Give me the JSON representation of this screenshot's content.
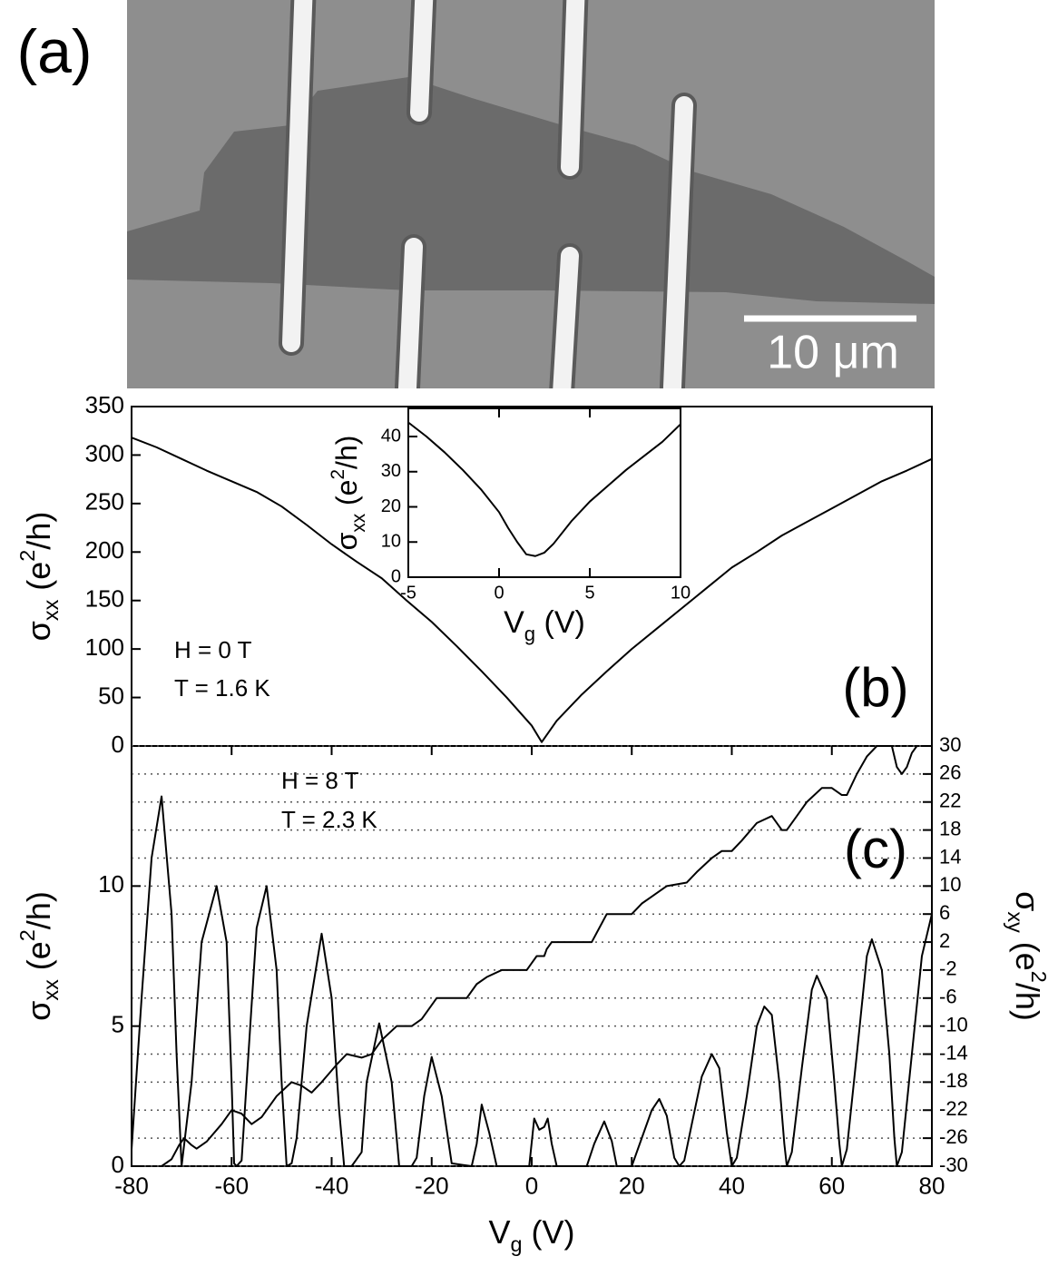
{
  "micrograph": {
    "label": "(a)",
    "scale_bar": "10 μm"
  },
  "chart_data": [
    {
      "type": "line",
      "panel": "(b)",
      "color": "#000000",
      "xlim": [
        -80,
        80
      ],
      "ylim": [
        0,
        350
      ],
      "yticks": [
        0,
        50,
        100,
        150,
        200,
        250,
        300,
        350
      ],
      "ylabel": [
        "σ",
        "xx",
        " (e",
        "2",
        "/h)"
      ],
      "annotations": [
        "H = 0 T",
        "T = 1.6 K"
      ],
      "x": [
        -80,
        -75,
        -70,
        -65,
        -60,
        -55,
        -50,
        -45,
        -40,
        -35,
        -30,
        -25,
        -20,
        -15,
        -10,
        -5,
        0,
        2,
        5,
        10,
        15,
        20,
        25,
        30,
        35,
        40,
        45,
        50,
        55,
        60,
        65,
        70,
        75,
        80
      ],
      "values": [
        318,
        308,
        296,
        284,
        273,
        262,
        247,
        228,
        208,
        190,
        173,
        150,
        128,
        103,
        77,
        50,
        21,
        4,
        26,
        53,
        77,
        100,
        121,
        142,
        163,
        184,
        200,
        217,
        231,
        245,
        259,
        273,
        284,
        296
      ]
    },
    {
      "type": "line",
      "color": "#000000",
      "xlim": [
        -5,
        10
      ],
      "xticks": [
        -5,
        0,
        5,
        10
      ],
      "ylim": [
        0,
        48
      ],
      "yticks": [
        0,
        10,
        20,
        30,
        40
      ],
      "xlabel": [
        "V",
        "g",
        " (V)"
      ],
      "ylabel": [
        "σ",
        "xx",
        " (e",
        "2",
        "/h)"
      ],
      "x": [
        -5,
        -4,
        -3,
        -2,
        -1,
        0,
        0.5,
        1,
        1.5,
        2,
        2.5,
        3,
        4,
        5,
        6,
        7,
        8,
        9,
        10
      ],
      "values": [
        44,
        40,
        35.5,
        30.5,
        25,
        18.5,
        14,
        10,
        6.5,
        6,
        7,
        9.5,
        16,
        21.5,
        26,
        30.5,
        34.5,
        38.5,
        43.5
      ]
    },
    {
      "type": "line",
      "panel": "(c)",
      "xlim": [
        -80,
        80
      ],
      "xticks": [
        -80,
        -60,
        -40,
        -20,
        0,
        20,
        40,
        60,
        80
      ],
      "ylim": [
        0,
        15
      ],
      "yticks": [
        0,
        5,
        10
      ],
      "y2lim": [
        -30,
        30
      ],
      "y2ticks": [
        30,
        26,
        22,
        18,
        14,
        10,
        6,
        2,
        -2,
        -6,
        -10,
        -14,
        -18,
        -22,
        -26,
        -30
      ],
      "grid": "y2",
      "xlabel": [
        "V",
        "g",
        " (V)"
      ],
      "ylabel": [
        "σ",
        "xx",
        " (e",
        "2",
        "/h)"
      ],
      "y2label": [
        "σ",
        "xy",
        " (e",
        "2",
        "/h)"
      ],
      "annotations": [
        "H = 8 T",
        "T = 2.3 K"
      ],
      "series": [
        {
          "color": "#000000",
          "x": [
            -80,
            -78,
            -76,
            -74,
            -72,
            -71,
            -70,
            -68,
            -66,
            -63,
            -61,
            -60,
            -59.5,
            -59,
            -58,
            -57,
            -55,
            -53,
            -51,
            -50,
            -49,
            -48,
            -47,
            -45,
            -42,
            -40,
            -38.5,
            -37.5,
            -36,
            -34,
            -33,
            -30.5,
            -28,
            -26.5,
            -24,
            -23,
            -21.5,
            -20,
            -18,
            -16,
            -12,
            -11,
            -10,
            -8.5,
            -7,
            -0.5,
            0.5,
            1.5,
            2.5,
            3.2,
            4,
            5,
            11,
            12.5,
            14.5,
            16,
            17,
            20,
            22,
            24,
            25.5,
            27,
            28.5,
            29.5,
            30.5,
            32,
            34,
            36,
            37.5,
            39,
            40,
            41,
            43,
            45,
            46.5,
            48,
            49.5,
            50.5,
            51,
            52,
            54,
            56,
            57,
            59,
            60.5,
            61.5,
            62,
            63,
            65,
            67,
            68,
            70,
            71.5,
            72.5,
            73,
            74,
            76,
            78,
            80
          ],
          "values": [
            0.6,
            6,
            11,
            13.2,
            9,
            4,
            0,
            3,
            8,
            10,
            8,
            3,
            0.1,
            0,
            0.2,
            3,
            8.5,
            10,
            7,
            3,
            0,
            0.1,
            1,
            5,
            8.3,
            6,
            2,
            0,
            0,
            0.5,
            3,
            5.1,
            3,
            0,
            0,
            0.3,
            2.5,
            3.9,
            2.5,
            0.1,
            0,
            0.8,
            2.2,
            1.2,
            0,
            0,
            1.7,
            1.3,
            1.4,
            1.7,
            0.8,
            0,
            0,
            0.8,
            1.6,
            0.9,
            0,
            0,
            1,
            2,
            2.4,
            1.8,
            0.3,
            0,
            0.2,
            1.5,
            3.2,
            4,
            3.5,
            1.2,
            0,
            0.3,
            2.5,
            5,
            5.7,
            5.4,
            3,
            0.8,
            0,
            0.5,
            3.5,
            6.3,
            6.8,
            6,
            3,
            0.8,
            0,
            0.6,
            4,
            7.5,
            8.1,
            7,
            4,
            1,
            0,
            0.5,
            4,
            7.5,
            9
          ]
        },
        {
          "color": "#000000",
          "axis": "y2",
          "x": [
            -74,
            -72,
            -70.5,
            -69.5,
            -68,
            -67,
            -65,
            -62,
            -60,
            -58,
            -56,
            -54,
            -51,
            -48,
            -46,
            -44,
            -42,
            -39,
            -37,
            -34,
            -32,
            -30,
            -27,
            -24,
            -22,
            -19,
            -13,
            -11,
            -9,
            -6,
            -1,
            0,
            1,
            2.5,
            3,
            4,
            12,
            13.5,
            15,
            20,
            22,
            24,
            27,
            31,
            33,
            36,
            38,
            40,
            42,
            45,
            48,
            50,
            51,
            53,
            55,
            58,
            60,
            62,
            63,
            65,
            67,
            69,
            72,
            73,
            74,
            75,
            76,
            77
          ],
          "values": [
            -30,
            -29,
            -27,
            -26,
            -27,
            -27.5,
            -26.5,
            -24,
            -22,
            -22.5,
            -24,
            -23,
            -20,
            -18,
            -18.5,
            -19.5,
            -18,
            -15.5,
            -14,
            -14.5,
            -14,
            -12,
            -10,
            -10,
            -9,
            -6,
            -6,
            -4,
            -3,
            -2,
            -2,
            -1,
            0,
            0,
            1,
            2,
            2,
            4,
            6,
            6,
            7.5,
            8.5,
            10,
            10.5,
            12,
            14,
            15,
            15,
            16.5,
            19,
            20,
            18,
            18,
            20,
            22,
            24,
            24,
            23,
            23,
            26,
            28.5,
            30,
            30,
            27,
            26,
            27,
            29,
            30
          ]
        }
      ]
    }
  ]
}
